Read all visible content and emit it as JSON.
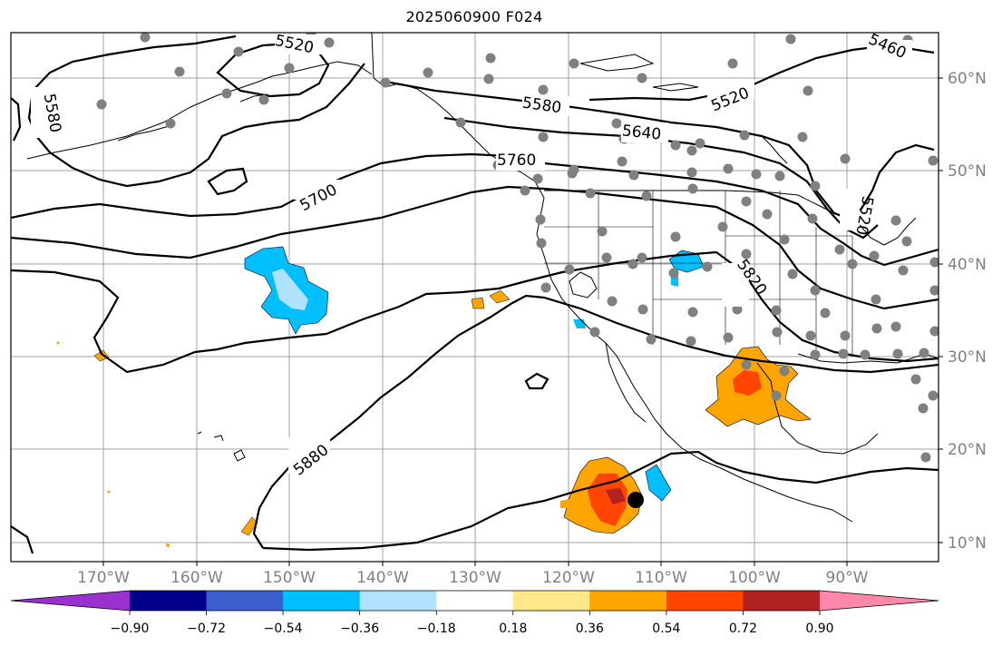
{
  "title": "2025060900 F024",
  "map": {
    "longitude_labels": [
      "170°W",
      "160°W",
      "150°W",
      "140°W",
      "130°W",
      "120°W",
      "110°W",
      "100°W",
      "90°W"
    ],
    "latitude_labels": [
      "60°N",
      "50°N",
      "40°N",
      "30°N",
      "20°N",
      "10°N"
    ],
    "contour_labels": [
      "5520",
      "5580",
      "5520",
      "5580",
      "5640",
      "5760",
      "5700",
      "5820",
      "5880",
      "5460",
      "5520"
    ],
    "colors": {
      "contour": "#000000",
      "grid": "#a0a0a0",
      "station_marker": "#808080",
      "storm_marker": "#000000"
    }
  },
  "colorbar": {
    "ticks": [
      "−0.90",
      "−0.72",
      "−0.54",
      "−0.36",
      "−0.18",
      "0.18",
      "0.36",
      "0.54",
      "0.72",
      "0.90"
    ],
    "colors": [
      "#9b30d0",
      "#00008b",
      "#3a5fcd",
      "#00bfff",
      "#b0e2ff",
      "#ffffff",
      "#ffe78a",
      "#ffa500",
      "#ff4500",
      "#b22222",
      "#ff88aa"
    ]
  }
}
